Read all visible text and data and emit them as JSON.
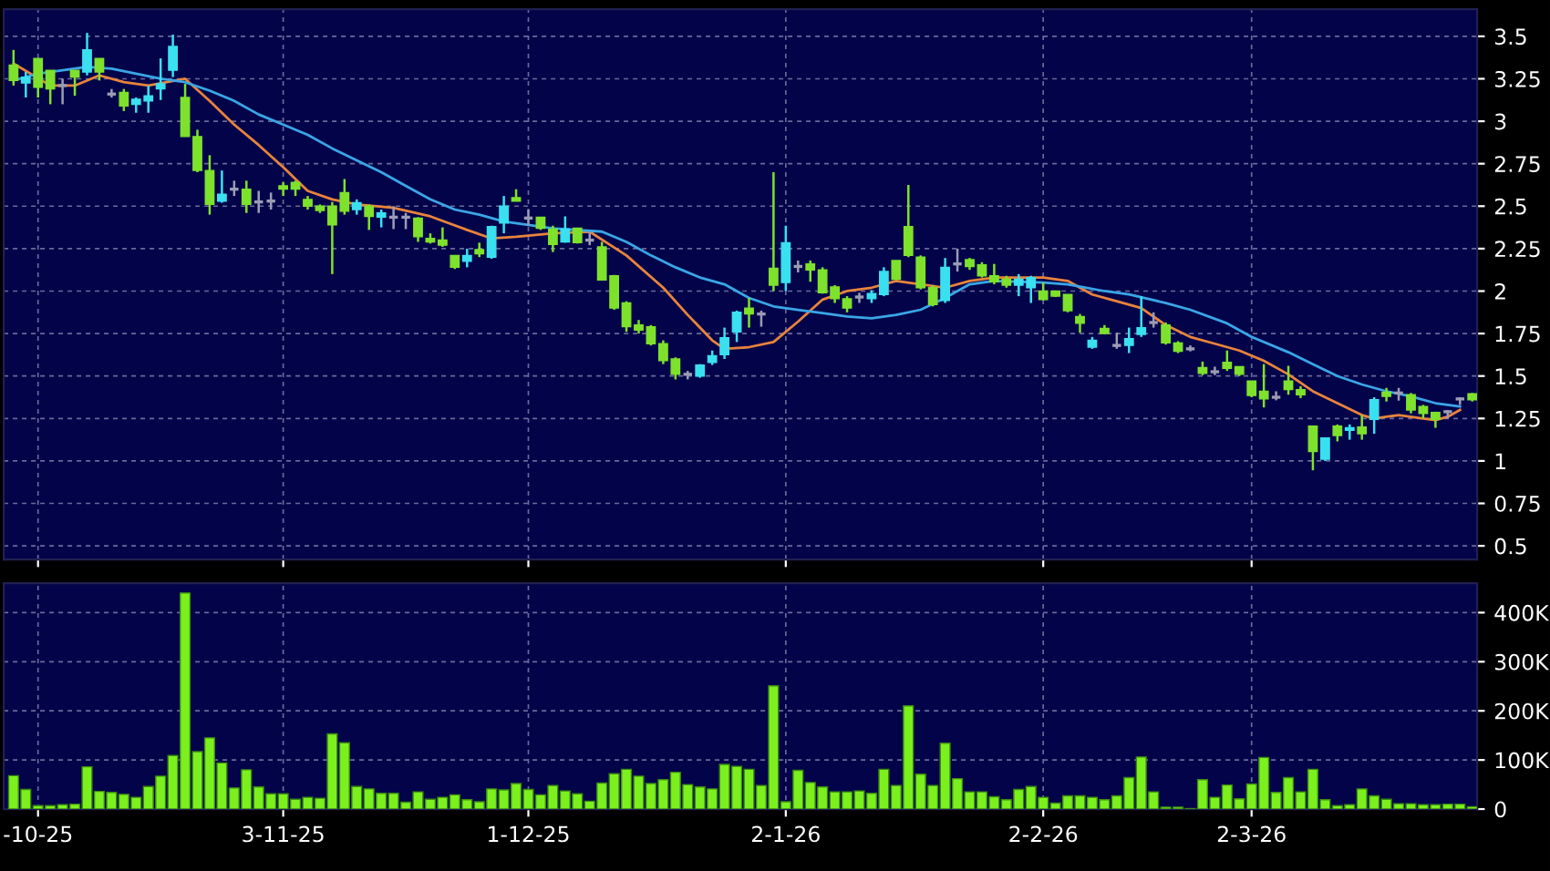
{
  "chart_data": [
    {
      "type": "candlestick",
      "tick_labels": "y",
      "grid": true,
      "legend": false,
      "categories": [
        null,
        null,
        null,
        null,
        null,
        null,
        null,
        null,
        null,
        null,
        null,
        null,
        null,
        null,
        null,
        null,
        null,
        null,
        null,
        null,
        null,
        null,
        null,
        null,
        null,
        null,
        null,
        null,
        null,
        null,
        null,
        null,
        null,
        null,
        null,
        null,
        null,
        null,
        null,
        null,
        null,
        null,
        null,
        null,
        null,
        null,
        null,
        null,
        null,
        null,
        null,
        null,
        null,
        null,
        null,
        null,
        null,
        null,
        null,
        null,
        null,
        null,
        null,
        null,
        null,
        null,
        null,
        null,
        null,
        null,
        null,
        null,
        null,
        null,
        null,
        null,
        null,
        null,
        null,
        null,
        null,
        null,
        null,
        null,
        null,
        null,
        null,
        null,
        null,
        null,
        null,
        null,
        null,
        null,
        null,
        null,
        null,
        null,
        null,
        null,
        null,
        null,
        null,
        null,
        null,
        null,
        null,
        null,
        null,
        null,
        null,
        null,
        null,
        null,
        null,
        null,
        null,
        null,
        null,
        null
      ],
      "ohlc": [
        [
          3.33,
          3.42,
          3.21,
          3.24
        ],
        [
          3.225,
          3.29,
          3.14,
          3.26
        ],
        [
          3.37,
          3.37,
          3.14,
          3.2
        ],
        [
          3.3,
          3.3,
          3.1,
          3.19
        ],
        [
          3.21,
          3.25,
          3.1,
          3.21
        ],
        [
          3.3,
          3.3,
          3.15,
          3.26
        ],
        [
          3.29,
          3.52,
          3.27,
          3.42
        ],
        [
          3.37,
          3.37,
          3.24,
          3.29
        ],
        [
          3.16,
          3.19,
          3.14,
          3.16
        ],
        [
          3.17,
          3.19,
          3.06,
          3.09
        ],
        [
          3.1,
          3.14,
          3.05,
          3.13
        ],
        [
          3.12,
          3.21,
          3.05,
          3.15
        ],
        [
          3.19,
          3.37,
          3.125,
          3.22
        ],
        [
          3.3,
          3.51,
          3.26,
          3.44
        ],
        [
          3.14,
          3.22,
          2.91,
          2.91
        ],
        [
          2.91,
          2.95,
          2.7,
          2.71
        ],
        [
          2.71,
          2.8,
          2.45,
          2.51
        ],
        [
          2.53,
          2.71,
          2.52,
          2.57
        ],
        [
          2.6,
          2.65,
          2.56,
          2.6
        ],
        [
          2.6,
          2.65,
          2.46,
          2.51
        ],
        [
          2.525,
          2.59,
          2.46,
          2.525
        ],
        [
          2.53,
          2.58,
          2.48,
          2.53
        ],
        [
          2.62,
          2.64,
          2.56,
          2.6
        ],
        [
          2.64,
          2.65,
          2.56,
          2.6
        ],
        [
          2.54,
          2.56,
          2.48,
          2.5
        ],
        [
          2.5,
          2.51,
          2.46,
          2.475
        ],
        [
          2.5,
          2.525,
          2.1,
          2.39
        ],
        [
          2.58,
          2.66,
          2.45,
          2.47
        ],
        [
          2.48,
          2.54,
          2.45,
          2.52
        ],
        [
          2.5,
          2.51,
          2.36,
          2.44
        ],
        [
          2.435,
          2.48,
          2.375,
          2.46
        ],
        [
          2.435,
          2.5,
          2.365,
          2.435
        ],
        [
          2.435,
          2.46,
          2.365,
          2.435
        ],
        [
          2.43,
          2.435,
          2.29,
          2.32
        ],
        [
          2.31,
          2.34,
          2.28,
          2.29
        ],
        [
          2.3,
          2.375,
          2.26,
          2.27
        ],
        [
          2.21,
          2.21,
          2.13,
          2.14
        ],
        [
          2.175,
          2.25,
          2.14,
          2.21
        ],
        [
          2.245,
          2.285,
          2.2,
          2.22
        ],
        [
          2.2,
          2.385,
          2.19,
          2.38
        ],
        [
          2.4,
          2.56,
          2.34,
          2.5
        ],
        [
          2.55,
          2.6,
          2.53,
          2.53
        ],
        [
          2.43,
          2.48,
          2.385,
          2.43
        ],
        [
          2.435,
          2.435,
          2.36,
          2.37
        ],
        [
          2.365,
          2.385,
          2.23,
          2.275
        ],
        [
          2.29,
          2.44,
          2.285,
          2.365
        ],
        [
          2.37,
          2.37,
          2.28,
          2.285
        ],
        [
          2.3,
          2.345,
          2.27,
          2.3
        ],
        [
          2.26,
          2.29,
          2.065,
          2.065
        ],
        [
          2.09,
          2.095,
          1.89,
          1.9
        ],
        [
          1.93,
          1.94,
          1.76,
          1.79
        ],
        [
          1.8,
          1.83,
          1.75,
          1.77
        ],
        [
          1.79,
          1.8,
          1.68,
          1.69
        ],
        [
          1.69,
          1.71,
          1.57,
          1.59
        ],
        [
          1.6,
          1.61,
          1.48,
          1.51
        ],
        [
          1.51,
          1.53,
          1.48,
          1.51
        ],
        [
          1.5,
          1.57,
          1.49,
          1.565
        ],
        [
          1.58,
          1.65,
          1.565,
          1.62
        ],
        [
          1.625,
          1.785,
          1.6,
          1.725
        ],
        [
          1.76,
          1.885,
          1.7,
          1.875
        ],
        [
          1.9,
          1.96,
          1.785,
          1.865
        ],
        [
          1.865,
          1.885,
          1.79,
          1.865
        ],
        [
          2.135,
          2.7,
          2.0,
          2.035
        ],
        [
          2.05,
          2.385,
          2.0,
          2.285
        ],
        [
          2.145,
          2.18,
          2.11,
          2.145
        ],
        [
          2.16,
          2.18,
          2.055,
          2.125
        ],
        [
          2.125,
          2.14,
          1.985,
          1.99
        ],
        [
          2.025,
          2.035,
          1.93,
          1.955
        ],
        [
          1.955,
          1.97,
          1.875,
          1.9
        ],
        [
          1.965,
          1.99,
          1.93,
          1.965
        ],
        [
          1.955,
          2.005,
          1.93,
          1.985
        ],
        [
          1.98,
          2.14,
          1.97,
          2.115
        ],
        [
          2.18,
          2.18,
          2.065,
          2.07
        ],
        [
          2.38,
          2.625,
          2.2,
          2.21
        ],
        [
          2.2,
          2.21,
          2.01,
          2.02
        ],
        [
          2.02,
          2.035,
          1.91,
          1.92
        ],
        [
          1.945,
          2.195,
          1.93,
          2.14
        ],
        [
          2.16,
          2.25,
          2.115,
          2.16
        ],
        [
          2.185,
          2.195,
          2.125,
          2.145
        ],
        [
          2.155,
          2.17,
          2.08,
          2.09
        ],
        [
          2.09,
          2.16,
          2.04,
          2.055
        ],
        [
          2.07,
          2.09,
          2.02,
          2.035
        ],
        [
          2.035,
          2.1,
          1.97,
          2.07
        ],
        [
          2.02,
          2.09,
          1.93,
          2.08
        ],
        [
          2.0,
          2.05,
          1.945,
          1.95
        ],
        [
          2.0,
          2.0,
          1.965,
          1.97
        ],
        [
          1.98,
          1.98,
          1.875,
          1.885
        ],
        [
          1.85,
          1.865,
          1.755,
          1.81
        ],
        [
          1.67,
          1.73,
          1.66,
          1.71
        ],
        [
          1.78,
          1.8,
          1.745,
          1.75
        ],
        [
          1.68,
          1.755,
          1.66,
          1.68
        ],
        [
          1.68,
          1.785,
          1.635,
          1.72
        ],
        [
          1.745,
          1.97,
          1.73,
          1.785
        ],
        [
          1.815,
          1.875,
          1.785,
          1.815
        ],
        [
          1.8,
          1.815,
          1.685,
          1.695
        ],
        [
          1.695,
          1.705,
          1.635,
          1.645
        ],
        [
          1.66,
          1.68,
          1.645,
          1.66
        ],
        [
          1.55,
          1.585,
          1.505,
          1.515
        ],
        [
          1.525,
          1.555,
          1.505,
          1.525
        ],
        [
          1.58,
          1.65,
          1.53,
          1.545
        ],
        [
          1.555,
          1.555,
          1.5,
          1.51
        ],
        [
          1.47,
          1.47,
          1.375,
          1.385
        ],
        [
          1.41,
          1.57,
          1.315,
          1.365
        ],
        [
          1.375,
          1.41,
          1.357,
          1.375
        ],
        [
          1.47,
          1.56,
          1.39,
          1.42
        ],
        [
          1.42,
          1.44,
          1.37,
          1.39
        ],
        [
          1.205,
          1.205,
          0.945,
          1.055
        ],
        [
          1.01,
          1.135,
          1.0,
          1.135
        ],
        [
          1.205,
          1.215,
          1.115,
          1.15
        ],
        [
          1.18,
          1.215,
          1.125,
          1.195
        ],
        [
          1.2,
          1.27,
          1.125,
          1.16
        ],
        [
          1.245,
          1.375,
          1.16,
          1.36
        ],
        [
          1.405,
          1.43,
          1.35,
          1.38
        ],
        [
          1.4,
          1.43,
          1.355,
          1.4
        ],
        [
          1.39,
          1.4,
          1.28,
          1.3
        ],
        [
          1.32,
          1.33,
          1.25,
          1.28
        ],
        [
          1.285,
          1.29,
          1.195,
          1.245
        ],
        [
          1.29,
          1.3,
          1.25,
          1.29
        ],
        [
          1.365,
          1.375,
          1.33,
          1.365
        ],
        [
          1.395,
          1.4,
          1.35,
          1.36
        ]
      ],
      "colors": [
        "#7ee22c",
        "#3ae0f0",
        "#7ee22c",
        "#7ee22c",
        "#9c9cb4",
        "#7ee22c",
        "#3ae0f0",
        "#7ee22c",
        "#9c9cb4",
        "#7ee22c",
        "#3ae0f0",
        "#3ae0f0",
        "#3ae0f0",
        "#3ae0f0",
        "#7ee22c",
        "#7ee22c",
        "#7ee22c",
        "#3ae0f0",
        "#9c9cb4",
        "#7ee22c",
        "#9c9cb4",
        "#9c9cb4",
        "#7ee22c",
        "#7ee22c",
        "#7ee22c",
        "#7ee22c",
        "#7ee22c",
        "#7ee22c",
        "#3ae0f0",
        "#7ee22c",
        "#3ae0f0",
        "#9c9cb4",
        "#9c9cb4",
        "#7ee22c",
        "#7ee22c",
        "#7ee22c",
        "#7ee22c",
        "#3ae0f0",
        "#7ee22c",
        "#3ae0f0",
        "#3ae0f0",
        "#7ee22c",
        "#9c9cb4",
        "#7ee22c",
        "#7ee22c",
        "#3ae0f0",
        "#7ee22c",
        "#9c9cb4",
        "#7ee22c",
        "#7ee22c",
        "#7ee22c",
        "#7ee22c",
        "#7ee22c",
        "#7ee22c",
        "#7ee22c",
        "#9c9cb4",
        "#3ae0f0",
        "#3ae0f0",
        "#3ae0f0",
        "#3ae0f0",
        "#7ee22c",
        "#9c9cb4",
        "#7ee22c",
        "#3ae0f0",
        "#9c9cb4",
        "#7ee22c",
        "#7ee22c",
        "#7ee22c",
        "#7ee22c",
        "#9c9cb4",
        "#3ae0f0",
        "#3ae0f0",
        "#7ee22c",
        "#7ee22c",
        "#7ee22c",
        "#7ee22c",
        "#3ae0f0",
        "#9c9cb4",
        "#7ee22c",
        "#7ee22c",
        "#7ee22c",
        "#7ee22c",
        "#3ae0f0",
        "#3ae0f0",
        "#7ee22c",
        "#7ee22c",
        "#7ee22c",
        "#7ee22c",
        "#3ae0f0",
        "#7ee22c",
        "#9c9cb4",
        "#3ae0f0",
        "#3ae0f0",
        "#9c9cb4",
        "#7ee22c",
        "#7ee22c",
        "#9c9cb4",
        "#7ee22c",
        "#9c9cb4",
        "#7ee22c",
        "#7ee22c",
        "#7ee22c",
        "#7ee22c",
        "#9c9cb4",
        "#7ee22c",
        "#7ee22c",
        "#7ee22c",
        "#3ae0f0",
        "#7ee22c",
        "#3ae0f0",
        "#7ee22c",
        "#3ae0f0",
        "#7ee22c",
        "#9c9cb4",
        "#7ee22c",
        "#7ee22c",
        "#7ee22c",
        "#9c9cb4",
        "#9c9cb4",
        "#7ee22c"
      ],
      "series": [
        {
          "type": "line",
          "color": "#e8843c",
          "values": [
            3.34,
            null,
            null,
            3.21,
            null,
            3.21,
            null,
            3.27,
            null,
            3.23,
            null,
            3.21,
            null,
            null,
            3.25,
            null,
            3.12,
            null,
            2.98,
            null,
            2.86,
            null,
            2.73,
            null,
            2.59,
            null,
            2.54,
            null,
            2.51,
            null,
            null,
            2.49,
            null,
            null,
            2.44,
            null,
            null,
            2.36,
            null,
            2.31,
            null,
            2.32,
            null,
            null,
            2.34,
            null,
            null,
            2.35,
            null,
            null,
            2.21,
            null,
            null,
            2.02,
            null,
            1.86,
            null,
            1.71,
            1.66,
            null,
            1.67,
            null,
            1.7,
            null,
            1.82,
            null,
            1.95,
            null,
            2.0,
            null,
            2.02,
            null,
            2.06,
            null,
            2.04,
            null,
            2.02,
            null,
            2.06,
            null,
            2.08,
            null,
            null,
            null,
            2.08,
            null,
            2.06,
            null,
            1.98,
            null,
            1.94,
            null,
            1.9,
            null,
            1.8,
            null,
            1.73,
            null,
            1.69,
            null,
            1.65,
            null,
            1.59,
            null,
            1.51,
            null,
            1.41,
            null,
            1.34,
            null,
            1.27,
            1.25,
            null,
            1.27,
            null,
            1.25,
            1.24,
            1.26,
            1.3,
            null
          ]
        },
        {
          "type": "line",
          "color": "#3aa6e6",
          "values": [
            3.24,
            null,
            3.28,
            null,
            3.3,
            null,
            3.32,
            null,
            3.31,
            null,
            3.28,
            null,
            3.25,
            null,
            3.23,
            null,
            3.18,
            null,
            3.12,
            null,
            3.04,
            null,
            2.98,
            null,
            2.92,
            null,
            2.84,
            null,
            2.77,
            null,
            2.7,
            null,
            2.62,
            null,
            2.54,
            null,
            2.48,
            null,
            2.45,
            null,
            2.41,
            null,
            2.39,
            null,
            2.37,
            null,
            2.36,
            null,
            2.35,
            null,
            2.29,
            null,
            2.21,
            null,
            2.14,
            null,
            2.08,
            null,
            2.04,
            null,
            1.96,
            null,
            1.91,
            null,
            1.89,
            null,
            1.87,
            null,
            1.85,
            null,
            1.84,
            null,
            1.86,
            null,
            1.89,
            null,
            1.96,
            null,
            2.04,
            null,
            2.06,
            null,
            null,
            null,
            2.05,
            null,
            2.04,
            null,
            null,
            2.0,
            null,
            1.98,
            null,
            null,
            1.93,
            null,
            1.89,
            null,
            null,
            1.81,
            null,
            1.73,
            null,
            null,
            1.64,
            null,
            1.57,
            null,
            1.5,
            null,
            1.45,
            null,
            1.41,
            null,
            1.38,
            null,
            1.34,
            null,
            1.32,
            null
          ]
        }
      ],
      "ylim": [
        0.42,
        3.66
      ],
      "yticks": [
        0.5,
        0.75,
        1,
        1.25,
        1.5,
        1.75,
        2,
        2.25,
        2.5,
        2.75,
        3,
        3.25,
        3.5
      ]
    },
    {
      "type": "bar",
      "grid": true,
      "legend": false,
      "color": "#7cf01e",
      "categories": [
        null,
        null,
        "-10-25",
        null,
        null,
        null,
        null,
        null,
        null,
        null,
        null,
        null,
        null,
        null,
        null,
        null,
        null,
        null,
        null,
        null,
        null,
        null,
        "3-11-25",
        null,
        null,
        null,
        null,
        null,
        null,
        null,
        null,
        null,
        null,
        null,
        null,
        null,
        null,
        null,
        null,
        null,
        null,
        null,
        "1-12-25",
        null,
        null,
        null,
        null,
        null,
        null,
        null,
        null,
        null,
        null,
        null,
        null,
        null,
        null,
        null,
        null,
        null,
        null,
        null,
        null,
        "2-1-26",
        null,
        null,
        null,
        null,
        null,
        null,
        null,
        null,
        null,
        null,
        null,
        null,
        null,
        null,
        null,
        null,
        null,
        null,
        null,
        null,
        "2-2-26",
        null,
        null,
        null,
        null,
        null,
        null,
        null,
        null,
        null,
        null,
        null,
        null,
        null,
        null,
        null,
        null,
        "2-3-26",
        null,
        null,
        null,
        null,
        null,
        null,
        null,
        null,
        null,
        null,
        null,
        null,
        null,
        null,
        null,
        null,
        null,
        null
      ],
      "values": [
        68000,
        40000,
        7000,
        7000,
        9000,
        10000,
        86000,
        36000,
        34000,
        30000,
        24000,
        46000,
        67000,
        109000,
        440000,
        117000,
        145000,
        94000,
        43000,
        80000,
        45000,
        31000,
        31000,
        20000,
        24000,
        22000,
        153000,
        135000,
        46000,
        41000,
        32000,
        32000,
        14000,
        35000,
        20000,
        24000,
        29000,
        19000,
        15000,
        41000,
        39000,
        52000,
        40000,
        29000,
        48000,
        37000,
        31000,
        16000,
        53000,
        72000,
        81000,
        67000,
        52000,
        60000,
        75000,
        50000,
        45000,
        41000,
        91000,
        87000,
        81000,
        48000,
        251000,
        15000,
        79000,
        54000,
        45000,
        35000,
        35000,
        37000,
        32000,
        81000,
        48000,
        210000,
        71000,
        48000,
        134000,
        62000,
        35000,
        35000,
        25000,
        19000,
        40000,
        46000,
        24000,
        12000,
        27000,
        27000,
        24000,
        19000,
        27000,
        64000,
        106000,
        35000,
        4000,
        4000,
        1000,
        60000,
        24000,
        49000,
        21000,
        51000,
        105000,
        34000,
        64000,
        35000,
        81000,
        19000,
        7000,
        9000,
        41000,
        27000,
        20000,
        11000,
        11000,
        9000,
        9000,
        10000,
        10000,
        5000
      ],
      "ylim": [
        0,
        460000
      ],
      "yticks": [
        0,
        {
          "value": 100000,
          "label": "100K"
        },
        {
          "value": 200000,
          "label": "200K"
        },
        {
          "value": 300000,
          "label": "300K"
        },
        {
          "value": 400000,
          "label": "400K"
        }
      ]
    }
  ]
}
